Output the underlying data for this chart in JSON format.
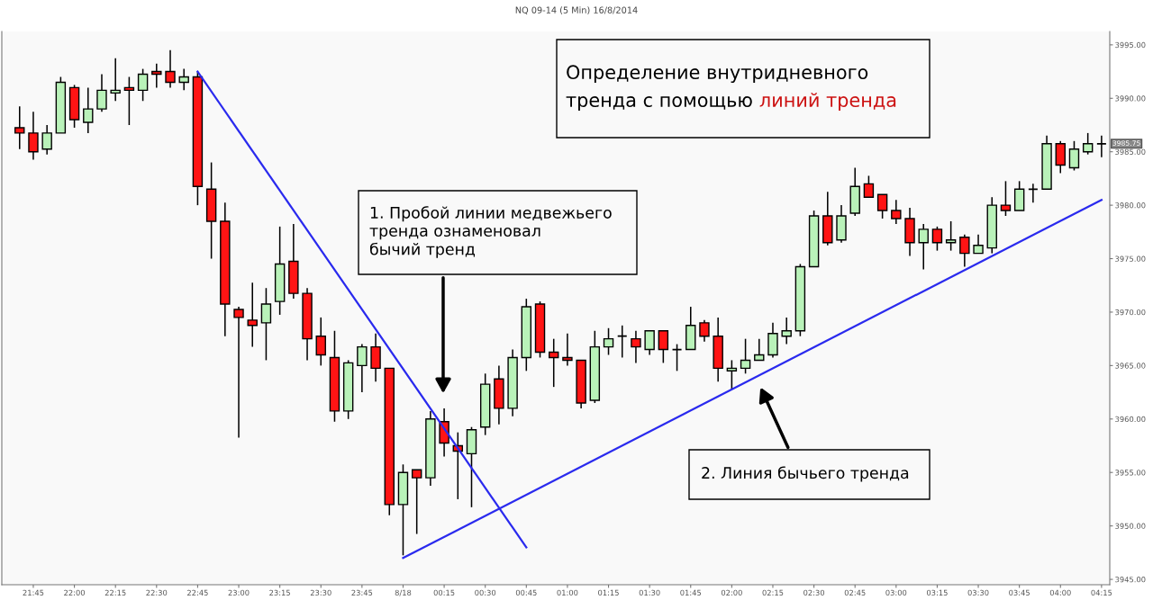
{
  "chart_data": {
    "type": "candlestick",
    "title": "NQ 09-14 (5 Min) 16/8/2014",
    "categories": [
      null,
      "21:45",
      null,
      null,
      "22:00",
      null,
      null,
      "22:15",
      null,
      null,
      "22:30",
      null,
      null,
      "22:45",
      null,
      null,
      "23:00",
      null,
      null,
      "23:15",
      null,
      null,
      "23:30",
      null,
      null,
      "23:45",
      null,
      null,
      "8/18",
      null,
      null,
      "00:15",
      null,
      null,
      "00:30",
      null,
      null,
      "00:45",
      null,
      null,
      "01:00",
      null,
      null,
      "01:15",
      null,
      null,
      "01:30",
      null,
      null,
      "01:45",
      null,
      null,
      "02:00",
      null,
      null,
      "02:15",
      null,
      null,
      "02:30",
      null,
      null,
      "02:45",
      null,
      null,
      "03:00",
      null,
      null,
      "03:15",
      null,
      null,
      "03:30",
      null,
      null,
      "03:45",
      null,
      null,
      "04:00",
      null,
      null,
      "04:15"
    ],
    "ohlc": [
      [
        3987.25,
        3989.25,
        3985.25,
        3986.75
      ],
      [
        3986.75,
        3988.75,
        3984.25,
        3985.0
      ],
      [
        3985.25,
        3987.5,
        3984.75,
        3986.75
      ],
      [
        3986.75,
        3992.0,
        3986.75,
        3991.5
      ],
      [
        3991.0,
        3991.25,
        3987.25,
        3988.0
      ],
      [
        3987.75,
        3991.0,
        3986.75,
        3989.0
      ],
      [
        3989.0,
        3992.25,
        3988.75,
        3990.75
      ],
      [
        3990.5,
        3993.75,
        3989.75,
        3990.75
      ],
      [
        3991.0,
        3992.0,
        3987.5,
        3990.75
      ],
      [
        3990.75,
        3992.75,
        3989.75,
        3992.25
      ],
      [
        3992.5,
        3993.25,
        3991.0,
        3992.25
      ],
      [
        3992.5,
        3994.5,
        3991.0,
        3991.5
      ],
      [
        3991.5,
        3992.75,
        3990.75,
        3992.0
      ],
      [
        3992.0,
        3992.5,
        3980.0,
        3981.75
      ],
      [
        3981.5,
        3984.0,
        3975.0,
        3978.5
      ],
      [
        3978.5,
        3980.25,
        3967.75,
        3970.75
      ],
      [
        3970.25,
        3970.5,
        3958.25,
        3969.5
      ],
      [
        3969.25,
        3972.75,
        3966.75,
        3968.75
      ],
      [
        3969.0,
        3972.25,
        3965.5,
        3970.75
      ],
      [
        3971.0,
        3978.0,
        3969.75,
        3974.5
      ],
      [
        3974.75,
        3978.25,
        3971.25,
        3971.75
      ],
      [
        3971.75,
        3972.25,
        3965.5,
        3967.5
      ],
      [
        3967.75,
        3969.5,
        3965.0,
        3966.0
      ],
      [
        3965.75,
        3968.25,
        3959.75,
        3960.75
      ],
      [
        3960.75,
        3965.5,
        3960.0,
        3965.25
      ],
      [
        3965.0,
        3967.0,
        3962.5,
        3966.75
      ],
      [
        3966.75,
        3968.0,
        3963.5,
        3964.75
      ],
      [
        3964.75,
        3964.75,
        3951.0,
        3952.0
      ],
      [
        3952.0,
        3955.75,
        3947.25,
        3955.0
      ],
      [
        3955.25,
        3955.25,
        3949.25,
        3954.5
      ],
      [
        3954.5,
        3960.75,
        3953.75,
        3960.0
      ],
      [
        3959.75,
        3961.0,
        3956.5,
        3957.75
      ],
      [
        3957.5,
        3958.75,
        3952.5,
        3957.0
      ],
      [
        3956.75,
        3959.25,
        3951.75,
        3959.0
      ],
      [
        3959.25,
        3964.25,
        3958.5,
        3963.25
      ],
      [
        3963.75,
        3965.0,
        3959.5,
        3961.0
      ],
      [
        3961.0,
        3966.5,
        3960.25,
        3965.75
      ],
      [
        3965.75,
        3971.25,
        3964.5,
        3970.5
      ],
      [
        3970.75,
        3971.0,
        3965.75,
        3966.25
      ],
      [
        3966.25,
        3967.5,
        3963.0,
        3965.75
      ],
      [
        3965.75,
        3968.0,
        3965.0,
        3965.5
      ],
      [
        3965.5,
        3965.5,
        3961.0,
        3961.5
      ],
      [
        3961.75,
        3968.25,
        3961.5,
        3966.75
      ],
      [
        3966.75,
        3968.5,
        3966.0,
        3967.5
      ],
      [
        3967.75,
        3968.75,
        3965.75,
        3967.75
      ],
      [
        3967.5,
        3968.25,
        3965.25,
        3966.75
      ],
      [
        3966.5,
        3968.25,
        3966.0,
        3968.25
      ],
      [
        3968.25,
        3968.25,
        3965.25,
        3966.5
      ],
      [
        3966.5,
        3967.0,
        3964.5,
        3966.5
      ],
      [
        3966.5,
        3970.5,
        3966.5,
        3968.75
      ],
      [
        3969.0,
        3969.25,
        3967.25,
        3967.75
      ],
      [
        3967.75,
        3969.5,
        3963.5,
        3964.75
      ],
      [
        3964.5,
        3965.5,
        3962.75,
        3964.75
      ],
      [
        3964.75,
        3967.5,
        3964.25,
        3965.5
      ],
      [
        3965.5,
        3967.5,
        3965.5,
        3966.0
      ],
      [
        3966.0,
        3969.0,
        3965.75,
        3968.0
      ],
      [
        3967.75,
        3969.5,
        3967.0,
        3968.25
      ],
      [
        3968.25,
        3974.5,
        3967.75,
        3974.25
      ],
      [
        3974.25,
        3979.5,
        3974.25,
        3979.0
      ],
      [
        3979.0,
        3981.25,
        3976.25,
        3976.5
      ],
      [
        3976.75,
        3980.0,
        3976.5,
        3979.0
      ],
      [
        3979.25,
        3983.5,
        3979.0,
        3981.75
      ],
      [
        3982.0,
        3982.75,
        3980.75,
        3980.75
      ],
      [
        3981.0,
        3981.0,
        3978.75,
        3979.5
      ],
      [
        3979.5,
        3980.5,
        3978.25,
        3978.75
      ],
      [
        3978.75,
        3979.75,
        3975.25,
        3976.5
      ],
      [
        3976.5,
        3978.25,
        3974.0,
        3977.75
      ],
      [
        3977.75,
        3978.0,
        3975.75,
        3976.5
      ],
      [
        3976.5,
        3978.5,
        3975.75,
        3976.75
      ],
      [
        3977.0,
        3977.25,
        3974.25,
        3975.5
      ],
      [
        3975.5,
        3977.25,
        3975.5,
        3976.25
      ],
      [
        3976.0,
        3980.75,
        3975.5,
        3980.0
      ],
      [
        3980.0,
        3982.25,
        3979.0,
        3979.5
      ],
      [
        3979.5,
        3982.25,
        3979.5,
        3981.5
      ],
      [
        3981.5,
        3982.0,
        3980.25,
        3981.5
      ],
      [
        3981.5,
        3986.5,
        3981.5,
        3985.75
      ],
      [
        3985.75,
        3986.0,
        3983.0,
        3983.75
      ],
      [
        3983.5,
        3986.0,
        3983.25,
        3985.25
      ],
      [
        3985.0,
        3986.75,
        3984.75,
        3985.75
      ],
      [
        3985.75,
        3986.5,
        3984.5,
        3985.75
      ]
    ],
    "colors": [
      "#ff1414",
      "#ff1414",
      "#b9f2b9",
      "#b9f2b9",
      "#ff1414",
      "#b9f2b9",
      "#b9f2b9",
      "#b9f2b9",
      "#ff1414",
      "#b9f2b9",
      "#ff1414",
      "#ff1414",
      "#b9f2b9",
      "#ff1414",
      "#ff1414",
      "#ff1414",
      "#ff1414",
      "#ff1414",
      "#b9f2b9",
      "#b9f2b9",
      "#ff1414",
      "#ff1414",
      "#ff1414",
      "#ff1414",
      "#b9f2b9",
      "#b9f2b9",
      "#ff1414",
      "#ff1414",
      "#b9f2b9",
      "#ff1414",
      "#b9f2b9",
      "#ff1414",
      "#ff1414",
      "#b9f2b9",
      "#b9f2b9",
      "#ff1414",
      "#b9f2b9",
      "#b9f2b9",
      "#ff1414",
      "#ff1414",
      "#ff1414",
      "#ff1414",
      "#b9f2b9",
      "#b9f2b9",
      "#000000",
      "#ff1414",
      "#b9f2b9",
      "#ff1414",
      "#000000",
      "#b9f2b9",
      "#ff1414",
      "#ff1414",
      "#b9f2b9",
      "#b9f2b9",
      "#b9f2b9",
      "#b9f2b9",
      "#b9f2b9",
      "#b9f2b9",
      "#b9f2b9",
      "#ff1414",
      "#b9f2b9",
      "#b9f2b9",
      "#ff1414",
      "#ff1414",
      "#ff1414",
      "#ff1414",
      "#b9f2b9",
      "#ff1414",
      "#b9f2b9",
      "#ff1414",
      "#b9f2b9",
      "#b9f2b9",
      "#ff1414",
      "#b9f2b9",
      "#000000",
      "#b9f2b9",
      "#ff1414",
      "#b9f2b9",
      "#b9f2b9",
      "#000000"
    ],
    "series": [
      {
        "type": "line",
        "x": [
          "22:45",
          "00:45"
        ],
        "values": [
          3992.5,
          3948
        ],
        "color": "#2a2aee"
      },
      {
        "type": "line",
        "x": [
          "8/18",
          "04:15"
        ],
        "values": [
          3947,
          3980.5
        ],
        "color": "#2a2aee"
      }
    ],
    "ylim": [
      3944.5,
      3996.25
    ],
    "yticks": [
      {
        "value": 3945,
        "label": "3945.00"
      },
      {
        "value": 3950,
        "label": "3950.00"
      },
      {
        "value": 3955,
        "label": "3955.00"
      },
      {
        "value": 3960,
        "label": "3960.00"
      },
      {
        "value": 3965,
        "label": "3965.00"
      },
      {
        "value": 3970,
        "label": "3970.00"
      },
      {
        "value": 3975,
        "label": "3975.00"
      },
      {
        "value": 3980,
        "label": "3980.00"
      },
      {
        "value": 3985,
        "label": "3985.00"
      },
      {
        "value": 3990,
        "label": "3990.00"
      },
      {
        "value": 3995,
        "label": "3995.00"
      }
    ],
    "grid": false,
    "legend": false,
    "annotations": [
      "Определение внутридневного тренда с помощью",
      "линий тренда",
      "1. Пробой линии медвежьего тренда ознаменовал бычий тренд",
      "2. Линия бычьего тренда",
      "3985.75"
    ]
  }
}
